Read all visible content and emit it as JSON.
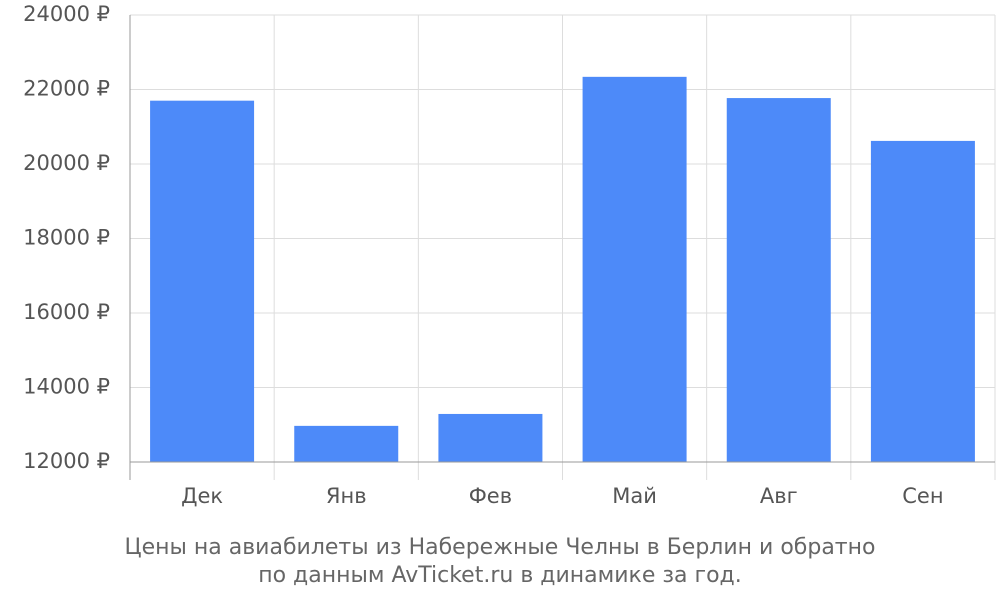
{
  "chart_data": {
    "type": "bar",
    "title": [
      "Цены на авиабилеты из Набережные Челны в Берлин и обратно",
      "по данным AvTicket.ru в динамике за год."
    ],
    "categories": [
      "Дек",
      "Янв",
      "Фев",
      "Май",
      "Авг",
      "Сен"
    ],
    "values": [
      21700,
      12970,
      13290,
      22340,
      21770,
      20620
    ],
    "color": "#4d8af9",
    "ylim": [
      12000,
      24000
    ],
    "yticks": [
      {
        "value": 12000,
        "label": "12000 ₽"
      },
      {
        "value": 14000,
        "label": "14000 ₽"
      },
      {
        "value": 16000,
        "label": "16000 ₽"
      },
      {
        "value": 18000,
        "label": "18000 ₽"
      },
      {
        "value": 20000,
        "label": "20000 ₽"
      },
      {
        "value": 22000,
        "label": "22000 ₽"
      },
      {
        "value": 24000,
        "label": "24000 ₽"
      }
    ],
    "grid": true
  }
}
